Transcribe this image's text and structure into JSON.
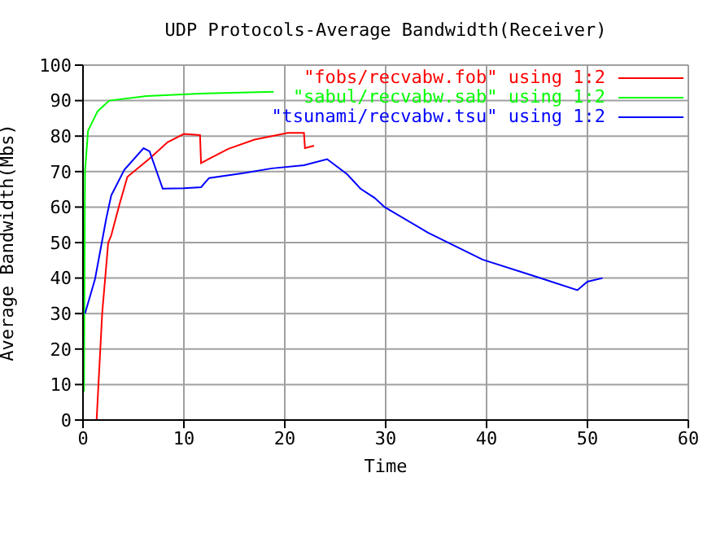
{
  "chart_data": {
    "type": "line",
    "title": "UDP Protocols-Average Bandwidth(Receiver)",
    "xlabel": "Time",
    "ylabel": "Average Bandwidth(Mbs)",
    "xlim": [
      0,
      60
    ],
    "xticks": [
      0,
      10,
      20,
      30,
      40,
      50,
      60
    ],
    "ylim": [
      0,
      100
    ],
    "yticks": [
      0,
      10,
      20,
      30,
      40,
      50,
      60,
      70,
      80,
      90,
      100
    ],
    "grid": true,
    "legend": "top right",
    "series": [
      {
        "name": "\"fobs/recvabw.fob\" using 1:2",
        "color": "#ff0000",
        "x": [
          1.35,
          1.9,
          2.5,
          2.8,
          3.6,
          4.4,
          6.6,
          8.4,
          10,
          11.6,
          11.7,
          14.4,
          17,
          20.3,
          21.9,
          22,
          22.9
        ],
        "values": [
          0,
          30,
          50,
          52,
          60.6,
          68.5,
          73.7,
          78.3,
          80.6,
          80.3,
          72.4,
          76.4,
          79,
          80.9,
          80.9,
          76.6,
          77.3
        ]
      },
      {
        "name": "\"sabul/recvabw.sab\" using 1:2",
        "color": "#00ff00",
        "x": [
          0.1,
          0.2,
          0.5,
          1.45,
          2.6,
          6.3,
          11.6,
          18.9
        ],
        "values": [
          8,
          70,
          81.5,
          87,
          90,
          91.3,
          92,
          92.5
        ]
      },
      {
        "name": "\"tsunami/recvabw.tsu\" using 1:2",
        "color": "#0000ff",
        "x": [
          0.2,
          1.2,
          2.3,
          2.8,
          4.1,
          6.0,
          6.6,
          7.9,
          10,
          11.7,
          12.5,
          16,
          18.7,
          21.9,
          24.2,
          26.2,
          27.5,
          28.9,
          29.9,
          34.2,
          39.6,
          45,
          49,
          50,
          51.5
        ],
        "values": [
          30,
          39.8,
          56.7,
          63.3,
          70.5,
          76.6,
          75.7,
          65.2,
          65.3,
          65.6,
          68.2,
          69.6,
          70.9,
          71.8,
          73.5,
          69.2,
          65.2,
          62.6,
          60,
          52.8,
          45.2,
          40.3,
          36.6,
          39,
          40
        ]
      }
    ]
  }
}
